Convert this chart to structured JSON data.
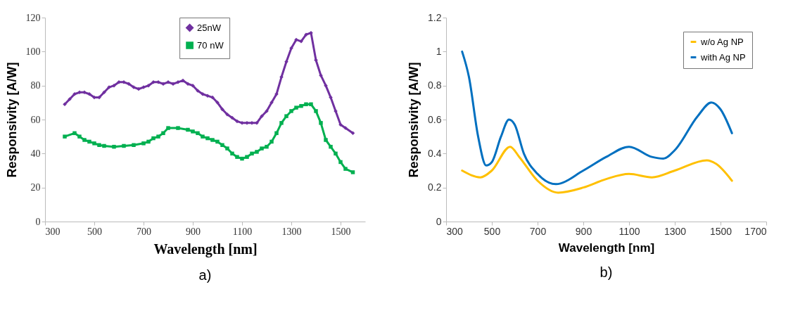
{
  "chart_data": [
    {
      "type": "line",
      "xlabel": "Wavelength [nm]",
      "ylabel": "Responsivity [A/W]",
      "annotations": [
        "a)"
      ],
      "xlim": [
        300,
        1600
      ],
      "xticks": [
        300,
        500,
        700,
        900,
        1100,
        1300,
        1500
      ],
      "ylim": [
        0,
        120
      ],
      "yticks": [
        0,
        20,
        40,
        60,
        80,
        100,
        120
      ],
      "grid": false,
      "legend": "top",
      "series": [
        {
          "name": "25nW",
          "color": "#7030a0",
          "marker": "diamond",
          "x": [
            380,
            400,
            420,
            440,
            460,
            480,
            500,
            520,
            540,
            560,
            580,
            600,
            620,
            640,
            660,
            680,
            700,
            720,
            740,
            760,
            780,
            800,
            820,
            840,
            860,
            880,
            900,
            920,
            940,
            960,
            980,
            1000,
            1020,
            1040,
            1060,
            1080,
            1100,
            1120,
            1140,
            1160,
            1180,
            1200,
            1220,
            1240,
            1260,
            1280,
            1300,
            1320,
            1340,
            1360,
            1380,
            1400,
            1420,
            1440,
            1460,
            1480,
            1500,
            1520,
            1550
          ],
          "values": [
            69,
            72,
            75,
            76,
            76,
            75,
            73,
            73,
            76,
            79,
            80,
            82,
            82,
            81,
            79,
            78,
            79,
            80,
            82,
            82,
            81,
            82,
            81,
            82,
            83,
            81,
            80,
            77,
            75,
            74,
            73,
            70,
            66,
            63,
            61,
            59,
            58,
            58,
            58,
            58,
            62,
            65,
            70,
            75,
            85,
            94,
            102,
            107,
            106,
            110,
            111,
            95,
            86,
            80,
            73,
            65,
            57,
            55,
            52
          ]
        },
        {
          "name": "70 nW",
          "color": "#00b050",
          "marker": "square",
          "x": [
            380,
            420,
            440,
            460,
            480,
            500,
            520,
            540,
            580,
            620,
            660,
            700,
            720,
            740,
            760,
            780,
            800,
            840,
            880,
            900,
            920,
            940,
            960,
            980,
            1000,
            1020,
            1040,
            1060,
            1080,
            1100,
            1120,
            1140,
            1160,
            1180,
            1200,
            1220,
            1240,
            1260,
            1280,
            1300,
            1320,
            1340,
            1360,
            1380,
            1400,
            1420,
            1440,
            1460,
            1480,
            1500,
            1520,
            1550
          ],
          "values": [
            50,
            52,
            50,
            48,
            47,
            46,
            45,
            44.5,
            44,
            44.5,
            45,
            46,
            47,
            49,
            50,
            52,
            55,
            55,
            54,
            53,
            52,
            50,
            49,
            48,
            47,
            45,
            43,
            40,
            38,
            37,
            38,
            40,
            41,
            43,
            44,
            47,
            52,
            58,
            62,
            65,
            67,
            68,
            69,
            69,
            65,
            58,
            48,
            44,
            40,
            35,
            31,
            29
          ]
        }
      ]
    },
    {
      "type": "line",
      "xlabel": "Wavelength [nm]",
      "ylabel": "Responsivity [A/W]",
      "annotations": [
        "b)"
      ],
      "xlim": [
        300,
        1700
      ],
      "xticks": [
        300,
        500,
        700,
        900,
        1100,
        1300,
        1500,
        1700
      ],
      "ylim": [
        0,
        1.2
      ],
      "yticks": [
        0,
        0.2,
        0.4,
        0.6,
        0.8,
        1,
        1.2
      ],
      "grid": false,
      "legend": "top right",
      "series": [
        {
          "name": "w/o Ag NP",
          "color": "#ffc000",
          "x": [
            370,
            450,
            500,
            580,
            620,
            700,
            790,
            900,
            1000,
            1100,
            1200,
            1300,
            1440,
            1480,
            1550
          ],
          "values": [
            0.3,
            0.26,
            0.3,
            0.44,
            0.38,
            0.24,
            0.17,
            0.2,
            0.25,
            0.28,
            0.26,
            0.3,
            0.36,
            0.34,
            0.24
          ]
        },
        {
          "name": "with Ag NP",
          "color": "#0070c0",
          "x": [
            370,
            400,
            440,
            475,
            500,
            540,
            575,
            600,
            640,
            700,
            780,
            900,
            1000,
            1100,
            1200,
            1250,
            1300,
            1400,
            1460,
            1500,
            1550
          ],
          "values": [
            1.0,
            0.85,
            0.5,
            0.33,
            0.35,
            0.5,
            0.6,
            0.57,
            0.4,
            0.28,
            0.22,
            0.3,
            0.38,
            0.44,
            0.38,
            0.37,
            0.42,
            0.62,
            0.7,
            0.66,
            0.52
          ]
        }
      ]
    }
  ]
}
